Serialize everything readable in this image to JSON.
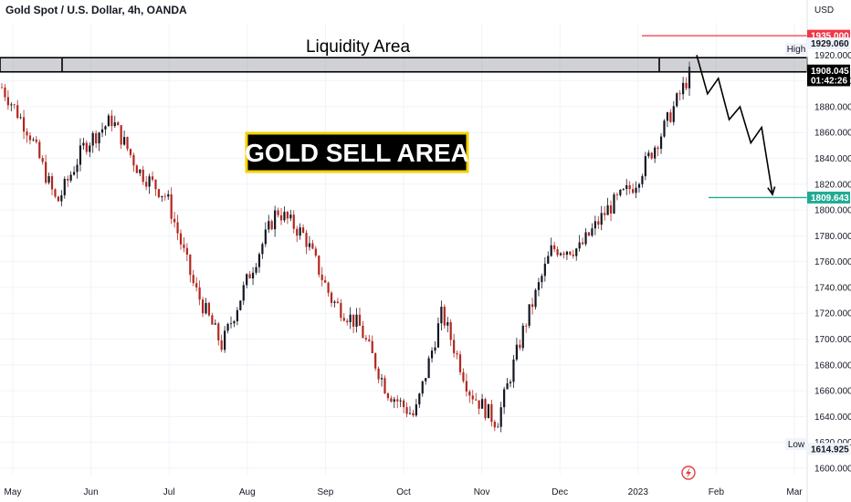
{
  "header": {
    "symbol": "Gold Spot / U.S. Dollar, 4h, OANDA",
    "currency": "USD"
  },
  "annotations": {
    "liquidity_label": "Liquidity Area",
    "sell_label": "GOLD SELL AREA",
    "high_label": "High",
    "low_label": "Low"
  },
  "chart_data": {
    "type": "candlestick",
    "title": "Gold Spot / U.S. Dollar, 4h, OANDA",
    "y_unit": "USD",
    "ylim": [
      1595,
      1945
    ],
    "y_ticks": [
      "1600.000",
      "1620.000",
      "1640.000",
      "1660.000",
      "1680.000",
      "1700.000",
      "1720.000",
      "1740.000",
      "1760.000",
      "1780.000",
      "1800.000",
      "1820.000",
      "1840.000",
      "1860.000",
      "1880.000",
      "1900.000",
      "1920.000"
    ],
    "x_ticks": [
      "May",
      "Jun",
      "Jul",
      "Aug",
      "Sep",
      "Oct",
      "Nov",
      "Dec",
      "2023",
      "Feb",
      "Mar"
    ],
    "price_anchors": [
      {
        "date": "May",
        "close": 1895
      },
      {
        "date": "May",
        "close": 1860
      },
      {
        "date": "May",
        "close": 1805
      },
      {
        "date": "Jun",
        "close": 1850
      },
      {
        "date": "Jun",
        "close": 1870
      },
      {
        "date": "Jun",
        "close": 1830
      },
      {
        "date": "Jul",
        "close": 1810
      },
      {
        "date": "Jul",
        "close": 1740
      },
      {
        "date": "Jul",
        "close": 1695
      },
      {
        "date": "Aug",
        "close": 1750
      },
      {
        "date": "Aug",
        "close": 1800
      },
      {
        "date": "Aug",
        "close": 1780
      },
      {
        "date": "Sep",
        "close": 1730
      },
      {
        "date": "Sep",
        "close": 1710
      },
      {
        "date": "Sep",
        "close": 1660
      },
      {
        "date": "Oct",
        "close": 1640
      },
      {
        "date": "Oct",
        "close": 1720
      },
      {
        "date": "Oct",
        "close": 1660
      },
      {
        "date": "Nov",
        "close": 1635
      },
      {
        "date": "Nov",
        "close": 1710
      },
      {
        "date": "Nov",
        "close": 1770
      },
      {
        "date": "Dec",
        "close": 1770
      },
      {
        "date": "Dec",
        "close": 1800
      },
      {
        "date": "Dec",
        "close": 1820
      },
      {
        "date": "2023",
        "close": 1860
      },
      {
        "date": "2023",
        "close": 1905
      }
    ],
    "levels": [
      {
        "name": "liquidity_zone",
        "from": 1907,
        "to": 1918
      },
      {
        "name": "target_high",
        "value": 1935.0,
        "label": "1935.000",
        "color": "#f23645"
      },
      {
        "name": "target_low",
        "value": 1809.643,
        "label": "1809.643",
        "color": "#22ab94"
      }
    ],
    "price_tags": [
      {
        "label": "1935.000",
        "value": 1935.0,
        "bg": "#f23645",
        "fg": "#ffffff"
      },
      {
        "label": "1929.060",
        "value": 1929.06,
        "bg": "#f0f3fa",
        "fg": "#131722"
      },
      {
        "label": "1908.045",
        "value": 1908.045,
        "bg": "#000000",
        "fg": "#ffffff"
      },
      {
        "label": "01:42:26",
        "value": 1900.5,
        "bg": "#000000",
        "fg": "#ffffff"
      },
      {
        "label": "1809.643",
        "value": 1809.643,
        "bg": "#22ab94",
        "fg": "#ffffff"
      },
      {
        "label": "1614.925",
        "value": 1614.925,
        "bg": "#f0f3fa",
        "fg": "#131722"
      }
    ],
    "projection_path": [
      1920,
      1890,
      1902,
      1870,
      1880,
      1852,
      1864,
      1812
    ],
    "colors": {
      "up": "#131722",
      "down": "#b2271e",
      "grid": "#f0f3fa"
    }
  }
}
